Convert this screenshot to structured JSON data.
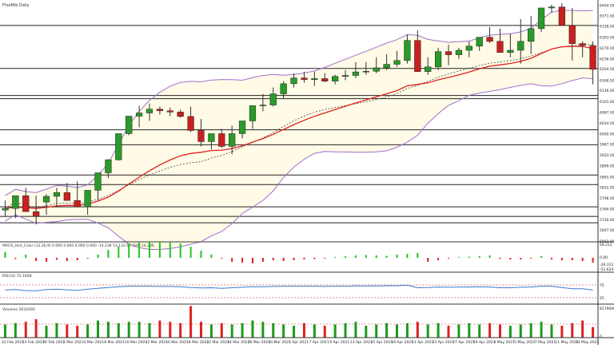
{
  "chart_data": [
    {
      "type": "candlestick",
      "title": "FtseMib Daily",
      "ylim": [
        5660,
        6420
      ],
      "y_ticks": [
        "6404.00",
        "6371.00",
        "6338.00",
        "6303.00",
        "6270.00",
        "6236.00",
        "6204.00",
        "6168.50",
        "6136.00",
        "6101.00",
        "6067.00",
        "6034.00",
        "6000.00",
        "5967.00",
        "5933.00",
        "5899.00",
        "5865.00",
        "5832.00",
        "5798.00",
        "5764.00",
        "5730.00",
        "5697.00",
        "5663.00"
      ],
      "x_ticks": [
        "22 Feb 2021",
        "24 Feb 2021",
        "26 Feb 2021",
        "2 Mar 2021",
        "4 Mar 2021",
        "8 Mar 2021",
        "10 Mar 2021",
        "12 Mar 2021",
        "16 Mar 2021",
        "18 Mar 2021",
        "22 Mar 2021",
        "24 Mar 2021",
        "26 Mar 2021",
        "30 Mar 2021",
        "1 Apr 2021",
        "7 Apr 2021",
        "9 Apr 2021",
        "13 Apr 2021",
        "15 Apr 2021",
        "19 Apr 2021",
        "21 Apr 2021",
        "23 Apr 2021",
        "27 Apr 2021",
        "29 Apr 2021",
        "3 May 2021",
        "5 May 2021",
        "7 May 2021",
        "11 May 2021",
        "13 May 2021"
      ],
      "price_levels": [
        6340,
        6205,
        6120,
        6110,
        6012,
        5965,
        5870,
        5840,
        5770,
        5740,
        5720
      ],
      "candles": {
        "open": [
          5760,
          5765,
          5805,
          5755,
          5785,
          5803,
          5815,
          5790,
          5770,
          5822,
          5877,
          5918,
          6000,
          6055,
          6065,
          6077,
          6072,
          6068,
          6054,
          6010,
          5975,
          6000,
          5960,
          6000,
          6040,
          6088,
          6090,
          6125,
          6157,
          6175,
          6170,
          6173,
          6165,
          6180,
          6183,
          6194,
          6196,
          6207,
          6218,
          6230,
          6293,
          6195,
          6210,
          6258,
          6248,
          6262,
          6275,
          6303,
          6290,
          6255,
          6262,
          6290,
          6330,
          6395,
          6398,
          6340,
          6283,
          6277
        ],
        "high": [
          5790,
          5800,
          5830,
          5805,
          5810,
          5830,
          5845,
          5850,
          5800,
          5860,
          5920,
          5965,
          6038,
          6088,
          6095,
          6085,
          6082,
          6076,
          6085,
          6046,
          6000,
          6015,
          6025,
          6040,
          6080,
          6125,
          6145,
          6165,
          6190,
          6195,
          6195,
          6190,
          6185,
          6200,
          6225,
          6225,
          6240,
          6250,
          6260,
          6312,
          6325,
          6240,
          6270,
          6280,
          6270,
          6290,
          6300,
          6335,
          6330,
          6315,
          6360,
          6370,
          6390,
          6405,
          6410,
          6395,
          6290,
          6290
        ],
        "low": [
          5740,
          5735,
          5760,
          5715,
          5745,
          5770,
          5795,
          5775,
          5745,
          5790,
          5860,
          5915,
          5995,
          6020,
          6040,
          6060,
          6055,
          6050,
          6005,
          5960,
          5950,
          5955,
          5935,
          5985,
          6015,
          6070,
          6085,
          6110,
          6145,
          6160,
          6150,
          6162,
          6155,
          6168,
          6175,
          6185,
          6190,
          6200,
          6210,
          6220,
          6225,
          6185,
          6200,
          6215,
          6235,
          6240,
          6260,
          6285,
          6260,
          6240,
          6220,
          6250,
          6320,
          6380,
          6385,
          6230,
          6240,
          6155
        ],
        "close": [
          5765,
          5805,
          5755,
          5740,
          5803,
          5815,
          5790,
          5770,
          5822,
          5877,
          5918,
          6000,
          6055,
          6065,
          6077,
          6072,
          6068,
          6054,
          6010,
          5975,
          6000,
          5960,
          6000,
          6040,
          6088,
          6090,
          6125,
          6157,
          6175,
          6170,
          6173,
          6165,
          6180,
          6183,
          6194,
          6196,
          6207,
          6218,
          6230,
          6293,
          6195,
          6210,
          6258,
          6248,
          6262,
          6275,
          6303,
          6290,
          6255,
          6262,
          6290,
          6330,
          6395,
          6398,
          6340,
          6283,
          6277,
          6202
        ]
      }
    },
    {
      "type": "bar",
      "title": "MACD_Hist_Color (12,26,9)  0.000  0.000  0.000  0.000  -14.236  53.133  67.329  -14.236",
      "y_ticks": [
        "28.212",
        "0.00",
        "-26.312",
        "-52.624"
      ],
      "values": [
        15,
        -3,
        8,
        -8,
        -10,
        -5,
        -8,
        -6,
        -2,
        8,
        20,
        28,
        35,
        38,
        40,
        40,
        38,
        36,
        28,
        18,
        8,
        -2,
        -10,
        -12,
        -14,
        -10,
        -6,
        -8,
        -6,
        -4,
        -3,
        -2,
        2,
        4,
        6,
        7,
        6,
        5,
        8,
        10,
        12,
        -10,
        -6,
        -2,
        2,
        3,
        4,
        6,
        -3,
        -4,
        -4,
        -2,
        4,
        -4,
        -6,
        -6,
        -8,
        -12
      ]
    },
    {
      "type": "line",
      "title": "RSI(14) 55.1648",
      "y_ticks": [
        "75",
        "25"
      ],
      "values": [
        55,
        57,
        53,
        52,
        57,
        58,
        56,
        54,
        58,
        62,
        65,
        68,
        70,
        70,
        70,
        69,
        69,
        68,
        65,
        63,
        64,
        62,
        64,
        66,
        68,
        68,
        69,
        70,
        70,
        70,
        70,
        69,
        70,
        70,
        71,
        71,
        71,
        72,
        72,
        74,
        64,
        65,
        67,
        66,
        67,
        67,
        68,
        67,
        64,
        64,
        66,
        67,
        70,
        70,
        65,
        60,
        60,
        55
      ]
    },
    {
      "type": "bar",
      "title": "Volumes 2632000",
      "y_ticks": [
        "8179000",
        "0"
      ],
      "values": [
        50,
        55,
        60,
        70,
        45,
        55,
        50,
        45,
        50,
        65,
        60,
        55,
        60,
        60,
        55,
        65,
        60,
        55,
        120,
        60,
        50,
        55,
        50,
        55,
        65,
        60,
        55,
        50,
        45,
        55,
        50,
        45,
        50,
        55,
        60,
        45,
        50,
        55,
        50,
        55,
        60,
        50,
        55,
        45,
        50,
        55,
        50,
        55,
        50,
        45,
        50,
        55,
        60,
        50,
        45,
        55,
        65,
        40
      ],
      "up": [
        true,
        true,
        false,
        false,
        true,
        true,
        false,
        false,
        true,
        true,
        true,
        true,
        true,
        true,
        true,
        false,
        false,
        false,
        false,
        false,
        true,
        false,
        true,
        true,
        true,
        true,
        true,
        true,
        true,
        false,
        true,
        false,
        true,
        true,
        true,
        true,
        true,
        true,
        true,
        true,
        false,
        true,
        true,
        false,
        true,
        true,
        true,
        false,
        false,
        true,
        true,
        true,
        true,
        true,
        false,
        false,
        false,
        false
      ]
    }
  ]
}
